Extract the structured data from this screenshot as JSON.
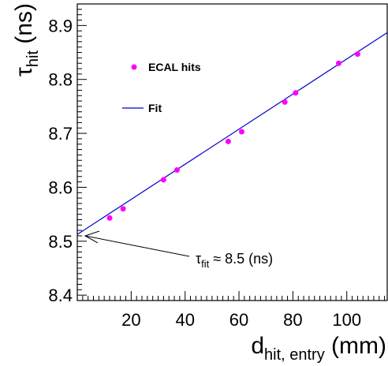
{
  "chart_data": {
    "type": "scatter",
    "xlabel": {
      "main": "d",
      "sub": "hit, entry",
      "unit": " (mm)"
    },
    "ylabel": {
      "main": "τ",
      "sub": "hit",
      "unit": " (ns)"
    },
    "xlim": [
      0,
      115
    ],
    "ylim": [
      8.39,
      8.94
    ],
    "xticks": [
      20,
      40,
      60,
      80,
      100
    ],
    "xtick_labels": [
      "20",
      "40",
      "60",
      "80",
      "100"
    ],
    "yticks": [
      8.4,
      8.5,
      8.6,
      8.7,
      8.8,
      8.9
    ],
    "ytick_labels": [
      "8.4",
      "8.5",
      "8.6",
      "8.7",
      "8.8",
      "8.9"
    ],
    "grid": false,
    "series": [
      {
        "name": "ECAL hits",
        "kind": "points",
        "color": "#ff00ff",
        "x": [
          12,
          17,
          32,
          37,
          56,
          61,
          77,
          81,
          97,
          104
        ],
        "y": [
          8.543,
          8.56,
          8.614,
          8.632,
          8.685,
          8.703,
          8.758,
          8.775,
          8.83,
          8.847
        ]
      },
      {
        "name": "Fit",
        "kind": "line",
        "color": "#0000cc",
        "intercept": 8.5125,
        "slope": 0.003255
      }
    ],
    "legend": {
      "placement": "top-left",
      "entries": [
        {
          "label": "ECAL hits",
          "marker": "dot",
          "color": "#ff00ff"
        },
        {
          "label": "Fit",
          "marker": "line",
          "color": "#0000cc"
        }
      ]
    },
    "annotation": {
      "symbol": "τ",
      "sub": "fit",
      "rest": " ≈ 8.5 (ns)",
      "points_to": {
        "x": 0,
        "y": 8.51
      }
    }
  }
}
